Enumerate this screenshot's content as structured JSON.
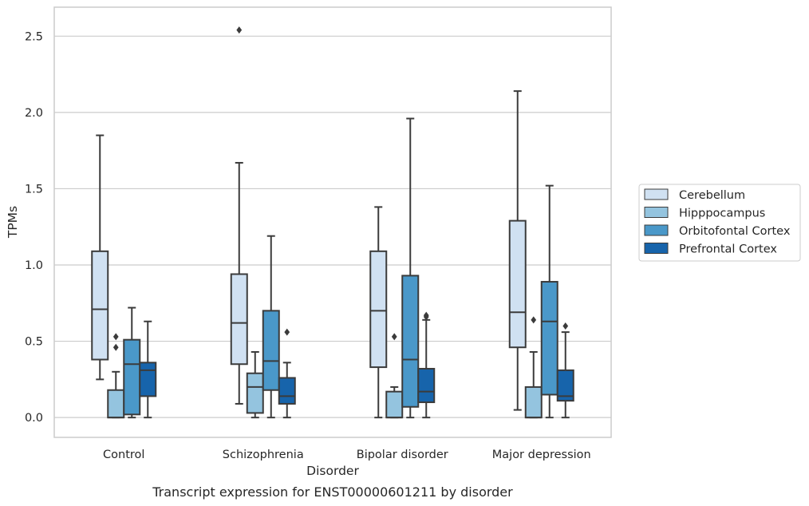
{
  "chart_data": {
    "type": "box",
    "title": "",
    "caption": "Transcript expression for ENST00000601211 by disorder",
    "xlabel": "Disorder",
    "ylabel": "TPMs",
    "ylim": [
      -0.13,
      2.69
    ],
    "yticks": [
      "0.0",
      "0.5",
      "1.0",
      "1.5",
      "2.0",
      "2.5"
    ],
    "ytick_values": [
      0,
      0.5,
      1.0,
      1.5,
      2.0,
      2.5
    ],
    "grid": true,
    "legend_position": "right",
    "categories": [
      "Control",
      "Schizophrenia",
      "Bipolar disorder",
      "Major depression"
    ],
    "series": [
      {
        "name": "Cerebellum",
        "color": "#d0e1f2",
        "boxes": [
          {
            "min": 0.25,
            "q1": 0.38,
            "median": 0.71,
            "q3": 1.09,
            "max": 1.85,
            "outliers": []
          },
          {
            "min": 0.09,
            "q1": 0.35,
            "median": 0.62,
            "q3": 0.94,
            "max": 1.67,
            "outliers": [
              2.54
            ]
          },
          {
            "min": 0.0,
            "q1": 0.33,
            "median": 0.7,
            "q3": 1.09,
            "max": 1.38,
            "outliers": []
          },
          {
            "min": 0.05,
            "q1": 0.46,
            "median": 0.69,
            "q3": 1.29,
            "max": 2.14,
            "outliers": []
          }
        ]
      },
      {
        "name": "Hipppocampus",
        "color": "#94c4df",
        "boxes": [
          {
            "min": 0.0,
            "q1": 0.0,
            "median": 0.0,
            "q3": 0.18,
            "max": 0.3,
            "outliers": [
              0.46,
              0.53
            ]
          },
          {
            "min": 0.0,
            "q1": 0.03,
            "median": 0.2,
            "q3": 0.29,
            "max": 0.43,
            "outliers": []
          },
          {
            "min": 0.0,
            "q1": 0.0,
            "median": 0.0,
            "q3": 0.17,
            "max": 0.2,
            "outliers": [
              0.53
            ]
          },
          {
            "min": 0.0,
            "q1": 0.0,
            "median": 0.0,
            "q3": 0.2,
            "max": 0.43,
            "outliers": [
              0.64
            ]
          }
        ]
      },
      {
        "name": "Orbitofontal Cortex",
        "color": "#4a98c9",
        "boxes": [
          {
            "min": 0.0,
            "q1": 0.02,
            "median": 0.35,
            "q3": 0.51,
            "max": 0.72,
            "outliers": []
          },
          {
            "min": 0.0,
            "q1": 0.18,
            "median": 0.37,
            "q3": 0.7,
            "max": 1.19,
            "outliers": []
          },
          {
            "min": 0.0,
            "q1": 0.07,
            "median": 0.38,
            "q3": 0.93,
            "max": 1.96,
            "outliers": []
          },
          {
            "min": 0.0,
            "q1": 0.15,
            "median": 0.63,
            "q3": 0.89,
            "max": 1.52,
            "outliers": []
          }
        ]
      },
      {
        "name": "Prefrontal Cortex",
        "color": "#1764ab",
        "boxes": [
          {
            "min": 0.0,
            "q1": 0.14,
            "median": 0.31,
            "q3": 0.36,
            "max": 0.63,
            "outliers": []
          },
          {
            "min": 0.0,
            "q1": 0.09,
            "median": 0.14,
            "q3": 0.26,
            "max": 0.36,
            "outliers": [
              0.56
            ]
          },
          {
            "min": 0.0,
            "q1": 0.1,
            "median": 0.17,
            "q3": 0.32,
            "max": 0.64,
            "outliers": [
              0.66,
              0.67
            ]
          },
          {
            "min": 0.0,
            "q1": 0.11,
            "median": 0.14,
            "q3": 0.31,
            "max": 0.56,
            "outliers": [
              0.6
            ]
          }
        ]
      }
    ]
  }
}
